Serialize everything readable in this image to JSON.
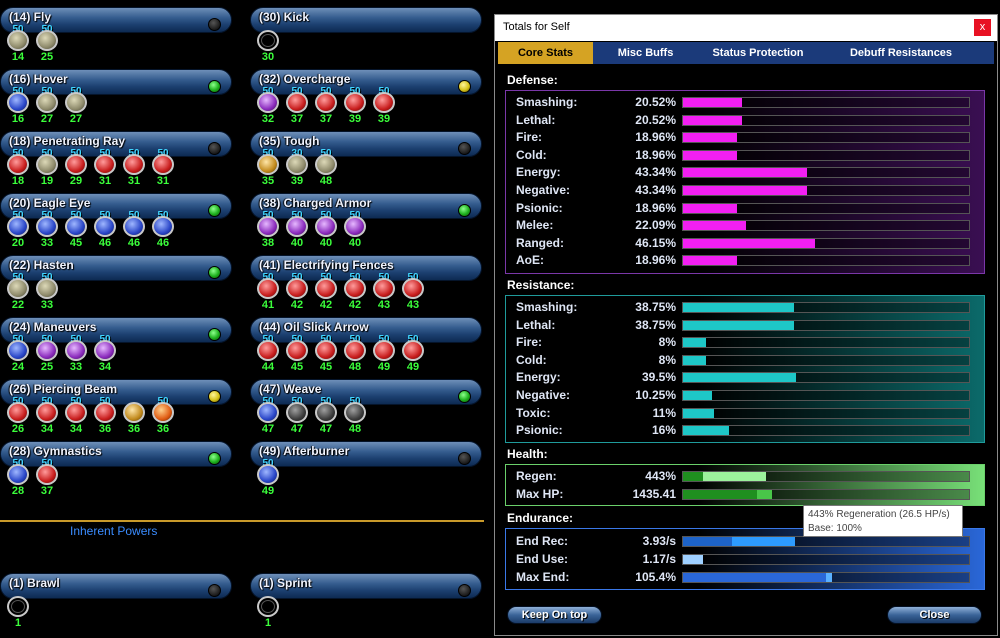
{
  "powers": [
    {
      "name": "(14) Fly",
      "dot": "dark",
      "slots": [
        {
          "v": "50",
          "l": "14",
          "c": "e-grey"
        },
        {
          "v": "50",
          "l": "25",
          "c": "e-grey"
        }
      ]
    },
    {
      "name": "(30) Kick",
      "dot": "none",
      "slots": [
        {
          "v": "",
          "l": "30",
          "c": "e-empty"
        }
      ]
    },
    {
      "name": "(16) Hover",
      "dot": "green",
      "slots": [
        {
          "v": "50",
          "l": "16",
          "c": "e-blue"
        },
        {
          "v": "50",
          "l": "27",
          "c": "e-grey"
        },
        {
          "v": "50",
          "l": "27",
          "c": "e-grey"
        }
      ]
    },
    {
      "name": "(32) Overcharge",
      "dot": "yellow",
      "slots": [
        {
          "v": "50",
          "l": "32",
          "c": "e-purple"
        },
        {
          "v": "50",
          "l": "37",
          "c": "e-red"
        },
        {
          "v": "50",
          "l": "37",
          "c": "e-red"
        },
        {
          "v": "50",
          "l": "39",
          "c": "e-red"
        },
        {
          "v": "50",
          "l": "39",
          "c": "e-red"
        }
      ]
    },
    {
      "name": "(18) Penetrating Ray",
      "dot": "dark",
      "slots": [
        {
          "v": "50",
          "l": "18",
          "c": "e-red"
        },
        {
          "v": "50",
          "l": "19",
          "c": "e-grey"
        },
        {
          "v": "50",
          "l": "29",
          "c": "e-red"
        },
        {
          "v": "50",
          "l": "31",
          "c": "e-red"
        },
        {
          "v": "50",
          "l": "31",
          "c": "e-red"
        },
        {
          "v": "50",
          "l": "31",
          "c": "e-red"
        }
      ]
    },
    {
      "name": "(35) Tough",
      "dot": "dark",
      "slots": [
        {
          "v": "50",
          "l": "35",
          "c": "e-gold"
        },
        {
          "v": "30",
          "l": "39",
          "c": "e-grey"
        },
        {
          "v": "50",
          "l": "48",
          "c": "e-grey"
        }
      ]
    },
    {
      "name": "(20) Eagle Eye",
      "dot": "green",
      "slots": [
        {
          "v": "50",
          "l": "20",
          "c": "e-blue"
        },
        {
          "v": "50",
          "l": "33",
          "c": "e-blue"
        },
        {
          "v": "50",
          "l": "45",
          "c": "e-blue"
        },
        {
          "v": "50",
          "l": "46",
          "c": "e-blue"
        },
        {
          "v": "50",
          "l": "46",
          "c": "e-blue"
        },
        {
          "v": "50",
          "l": "46",
          "c": "e-blue"
        }
      ]
    },
    {
      "name": "(38) Charged Armor",
      "dot": "green",
      "slots": [
        {
          "v": "50",
          "l": "38",
          "c": "e-purple"
        },
        {
          "v": "50",
          "l": "40",
          "c": "e-purple"
        },
        {
          "v": "50",
          "l": "40",
          "c": "e-purple"
        },
        {
          "v": "50",
          "l": "40",
          "c": "e-purple"
        }
      ]
    },
    {
      "name": "(22) Hasten",
      "dot": "green",
      "slots": [
        {
          "v": "50",
          "l": "22",
          "c": "e-grey"
        },
        {
          "v": "50",
          "l": "33",
          "c": "e-grey"
        }
      ]
    },
    {
      "name": "(41) Electrifying Fences",
      "dot": "none",
      "slots": [
        {
          "v": "50",
          "l": "41",
          "c": "e-red"
        },
        {
          "v": "50",
          "l": "42",
          "c": "e-red"
        },
        {
          "v": "50",
          "l": "42",
          "c": "e-red"
        },
        {
          "v": "50",
          "l": "42",
          "c": "e-red"
        },
        {
          "v": "50",
          "l": "43",
          "c": "e-red"
        },
        {
          "v": "50",
          "l": "43",
          "c": "e-red"
        }
      ]
    },
    {
      "name": "(24) Maneuvers",
      "dot": "green",
      "slots": [
        {
          "v": "50",
          "l": "24",
          "c": "e-blue"
        },
        {
          "v": "50",
          "l": "25",
          "c": "e-purple"
        },
        {
          "v": "50",
          "l": "33",
          "c": "e-purple"
        },
        {
          "v": "50",
          "l": "34",
          "c": "e-purple"
        }
      ]
    },
    {
      "name": "(44) Oil Slick Arrow",
      "dot": "none",
      "slots": [
        {
          "v": "50",
          "l": "44",
          "c": "e-red"
        },
        {
          "v": "50",
          "l": "45",
          "c": "e-red"
        },
        {
          "v": "50",
          "l": "45",
          "c": "e-red"
        },
        {
          "v": "50",
          "l": "48",
          "c": "e-red"
        },
        {
          "v": "50",
          "l": "49",
          "c": "e-red"
        },
        {
          "v": "50",
          "l": "49",
          "c": "e-red"
        }
      ]
    },
    {
      "name": "(26) Piercing Beam",
      "dot": "yellow",
      "slots": [
        {
          "v": "50",
          "l": "26",
          "c": "e-red"
        },
        {
          "v": "50",
          "l": "34",
          "c": "e-red"
        },
        {
          "v": "50",
          "l": "34",
          "c": "e-red"
        },
        {
          "v": "50",
          "l": "36",
          "c": "e-red"
        },
        {
          "v": "",
          "l": "36",
          "c": "e-gold"
        },
        {
          "v": "50",
          "l": "36",
          "c": "e-orange"
        }
      ]
    },
    {
      "name": "(47) Weave",
      "dot": "green",
      "slots": [
        {
          "v": "50",
          "l": "47",
          "c": "e-blue"
        },
        {
          "v": "50",
          "l": "47",
          "c": "e-dark"
        },
        {
          "v": "50",
          "l": "47",
          "c": "e-dark"
        },
        {
          "v": "50",
          "l": "48",
          "c": "e-dark"
        }
      ]
    },
    {
      "name": "(28) Gymnastics",
      "dot": "green",
      "slots": [
        {
          "v": "50",
          "l": "28",
          "c": "e-blue"
        },
        {
          "v": "50",
          "l": "37",
          "c": "e-red"
        }
      ]
    },
    {
      "name": "(49) Afterburner",
      "dot": "dark",
      "slots": [
        {
          "v": "50",
          "l": "49",
          "c": "e-blue"
        }
      ]
    }
  ],
  "inherent_label": "Inherent Powers",
  "inherent": [
    {
      "name": "(1) Brawl",
      "dot": "dark",
      "slots": [
        {
          "v": "",
          "l": "1",
          "c": "e-empty"
        }
      ]
    },
    {
      "name": "(1) Sprint",
      "dot": "dark",
      "slots": [
        {
          "v": "",
          "l": "1",
          "c": "e-empty"
        }
      ]
    }
  ],
  "window": {
    "title": "Totals for Self",
    "close": "x",
    "tabs": [
      "Core Stats",
      "Misc Buffs",
      "Status Protection",
      "Debuff Resistances"
    ],
    "defense_title": "Defense:",
    "defense": [
      {
        "label": "Smashing:",
        "value": "20.52%",
        "frac": 0.2052
      },
      {
        "label": "Lethal:",
        "value": "20.52%",
        "frac": 0.2052
      },
      {
        "label": "Fire:",
        "value": "18.96%",
        "frac": 0.1896
      },
      {
        "label": "Cold:",
        "value": "18.96%",
        "frac": 0.1896
      },
      {
        "label": "Energy:",
        "value": "43.34%",
        "frac": 0.4334
      },
      {
        "label": "Negative:",
        "value": "43.34%",
        "frac": 0.4334
      },
      {
        "label": "Psionic:",
        "value": "18.96%",
        "frac": 0.1896
      },
      {
        "label": "Melee:",
        "value": "22.09%",
        "frac": 0.2209
      },
      {
        "label": "Ranged:",
        "value": "46.15%",
        "frac": 0.4615
      },
      {
        "label": "AoE:",
        "value": "18.96%",
        "frac": 0.1896
      }
    ],
    "resistance_title": "Resistance:",
    "resistance": [
      {
        "label": "Smashing:",
        "value": "38.75%",
        "frac": 0.3875
      },
      {
        "label": "Lethal:",
        "value": "38.75%",
        "frac": 0.3875
      },
      {
        "label": "Fire:",
        "value": "8%",
        "frac": 0.08
      },
      {
        "label": "Cold:",
        "value": "8%",
        "frac": 0.08
      },
      {
        "label": "Energy:",
        "value": "39.5%",
        "frac": 0.395
      },
      {
        "label": "Negative:",
        "value": "10.25%",
        "frac": 0.1025
      },
      {
        "label": "Toxic:",
        "value": "11%",
        "frac": 0.11
      },
      {
        "label": "Psionic:",
        "value": "16%",
        "frac": 0.16
      }
    ],
    "health_title": "Health:",
    "health": [
      {
        "label": "Regen:",
        "value": "443%",
        "base": 0.07,
        "frac": 0.29,
        "c1": "#1f8f1f",
        "c2": "#9cf29c"
      },
      {
        "label": "Max HP:",
        "value": "1435.41",
        "base": 0.26,
        "frac": 0.31,
        "c1": "#1f8f1f",
        "c2": "#49c649"
      }
    ],
    "endurance_title": "Endurance:",
    "endurance": [
      {
        "label": "End Rec:",
        "value": "3.93/s",
        "base": 0.17,
        "frac": 0.39,
        "c1": "#1d63c8",
        "c2": "#2d9bff"
      },
      {
        "label": "End Use:",
        "value": "1.17/s",
        "base": 0.07,
        "frac": 0.07,
        "c1": "#9fd0ff",
        "c2": "#9fd0ff"
      },
      {
        "label": "Max End:",
        "value": "105.4%",
        "base": 0.5,
        "frac": 0.52,
        "c1": "#2a67d8",
        "c2": "#5ab0ff"
      }
    ],
    "keep_on_top": "Keep On top",
    "close_btn": "Close",
    "tooltip_line1": "443% Regeneration (26.5 HP/s)",
    "tooltip_line2": "Base: 100%"
  },
  "colors": {
    "defense_fill": "#f21ff2",
    "resistance_fill": "#1ec7c7",
    "tab_active": "#d5a323",
    "tab_bar": "#1b3a7a"
  }
}
